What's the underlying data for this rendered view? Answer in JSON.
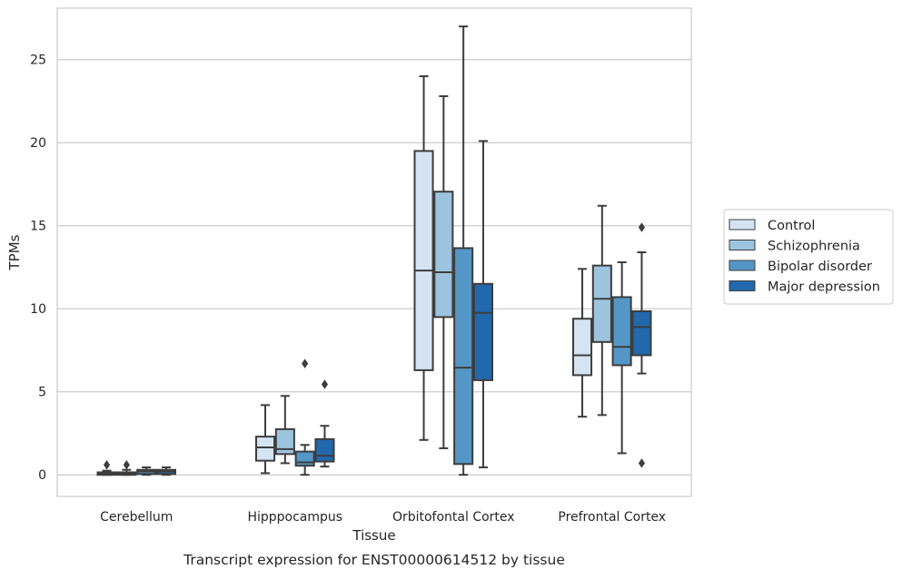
{
  "chart_data": {
    "type": "box",
    "title": "Transcript expression for ENST00000614512 by tissue",
    "xlabel": "Tissue",
    "ylabel": "TPMs",
    "ylim": [
      -1.3,
      28.1
    ],
    "yticks": [
      0,
      5,
      10,
      15,
      20,
      25
    ],
    "grid": true,
    "legend_position": "right",
    "categories": [
      "Cerebellum",
      "Hipppocampus",
      "Orbitofontal Cortex",
      "Prefrontal Cortex"
    ],
    "series": [
      {
        "name": "Control",
        "color": "#d5e4f2",
        "boxes": [
          {
            "whislo": 0.0,
            "q1": 0.0,
            "med": 0.05,
            "q3": 0.15,
            "whishi": 0.25,
            "fliers": [
              0.6
            ]
          },
          {
            "whislo": 0.1,
            "q1": 0.85,
            "med": 1.65,
            "q3": 2.3,
            "whishi": 4.2,
            "fliers": []
          },
          {
            "whislo": 2.1,
            "q1": 6.3,
            "med": 12.3,
            "q3": 19.5,
            "whishi": 24.0,
            "fliers": []
          },
          {
            "whislo": 3.5,
            "q1": 6.0,
            "med": 7.2,
            "q3": 9.4,
            "whishi": 12.4,
            "fliers": []
          }
        ]
      },
      {
        "name": "Schizophrenia",
        "color": "#9dc4df",
        "boxes": [
          {
            "whislo": 0.0,
            "q1": 0.0,
            "med": 0.05,
            "q3": 0.15,
            "whishi": 0.3,
            "fliers": [
              0.6
            ]
          },
          {
            "whislo": 0.7,
            "q1": 1.25,
            "med": 1.55,
            "q3": 2.75,
            "whishi": 4.75,
            "fliers": []
          },
          {
            "whislo": 1.6,
            "q1": 9.5,
            "med": 12.2,
            "q3": 17.05,
            "whishi": 22.8,
            "fliers": []
          },
          {
            "whislo": 3.6,
            "q1": 8.0,
            "med": 10.6,
            "q3": 12.6,
            "whishi": 16.2,
            "fliers": []
          }
        ]
      },
      {
        "name": "Bipolar disorder",
        "color": "#5497c6",
        "boxes": [
          {
            "whislo": 0.0,
            "q1": 0.05,
            "med": 0.2,
            "q3": 0.3,
            "whishi": 0.45,
            "fliers": []
          },
          {
            "whislo": 0.0,
            "q1": 0.55,
            "med": 0.75,
            "q3": 1.4,
            "whishi": 1.8,
            "fliers": [
              6.7
            ]
          },
          {
            "whislo": 0.0,
            "q1": 0.65,
            "med": 6.45,
            "q3": 13.65,
            "whishi": 27.0,
            "fliers": []
          },
          {
            "whislo": 1.3,
            "q1": 6.6,
            "med": 7.7,
            "q3": 10.7,
            "whishi": 12.8,
            "fliers": []
          }
        ]
      },
      {
        "name": "Major depression",
        "color": "#2268ad",
        "boxes": [
          {
            "whislo": 0.0,
            "q1": 0.05,
            "med": 0.2,
            "q3": 0.3,
            "whishi": 0.45,
            "fliers": []
          },
          {
            "whislo": 0.5,
            "q1": 0.8,
            "med": 1.15,
            "q3": 2.15,
            "whishi": 2.95,
            "fliers": [
              5.45
            ]
          },
          {
            "whislo": 0.45,
            "q1": 5.7,
            "med": 9.75,
            "q3": 11.5,
            "whishi": 20.1,
            "fliers": []
          },
          {
            "whislo": 6.1,
            "q1": 7.2,
            "med": 8.9,
            "q3": 9.85,
            "whishi": 13.4,
            "fliers": [
              0.7,
              14.9
            ]
          }
        ]
      }
    ]
  }
}
